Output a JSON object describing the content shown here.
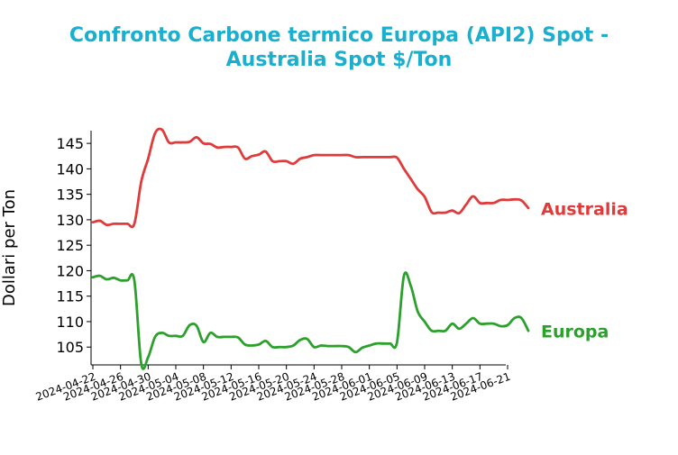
{
  "chart_data": {
    "type": "line",
    "title_line1": "Confronto Carbone termico Europa (API2) Spot -",
    "title_line2": "Australia Spot $/Ton",
    "xlabel": "",
    "ylabel": "Dollari per Ton",
    "ylim": [
      101.5,
      147.5
    ],
    "yticks": [
      105,
      110,
      115,
      120,
      125,
      130,
      135,
      140,
      145
    ],
    "xlim": [
      "2024-04-22",
      "2024-06-21"
    ],
    "xticks": [
      "2024-04-22",
      "2024-04-26",
      "2024-04-30",
      "2024-05-04",
      "2024-05-08",
      "2024-05-12",
      "2024-05-16",
      "2024-05-20",
      "2024-05-24",
      "2024-05-28",
      "2024-06-01",
      "2024-06-05",
      "2024-06-09",
      "2024-06-13",
      "2024-06-17",
      "2024-06-21"
    ],
    "grid": false,
    "legend": "inline labels at right end of lines",
    "series": [
      {
        "name": "Australia",
        "color": "#e03a3a",
        "points": [
          [
            "2024-04-22",
            129.5
          ],
          [
            "2024-04-23",
            129.8
          ],
          [
            "2024-04-24",
            129.0
          ],
          [
            "2024-04-25",
            129.2
          ],
          [
            "2024-04-26",
            129.2
          ],
          [
            "2024-04-27",
            129.2
          ],
          [
            "2024-04-28",
            129.2
          ],
          [
            "2024-04-29",
            137.5
          ],
          [
            "2024-04-30",
            142.0
          ],
          [
            "2024-05-01",
            147.0
          ],
          [
            "2024-05-02",
            147.7
          ],
          [
            "2024-05-03",
            145.2
          ],
          [
            "2024-05-04",
            145.2
          ],
          [
            "2024-05-05",
            145.2
          ],
          [
            "2024-05-06",
            145.3
          ],
          [
            "2024-05-07",
            146.2
          ],
          [
            "2024-05-08",
            145.0
          ],
          [
            "2024-05-09",
            144.9
          ],
          [
            "2024-05-10",
            144.2
          ],
          [
            "2024-05-11",
            144.3
          ],
          [
            "2024-05-12",
            144.3
          ],
          [
            "2024-05-13",
            144.2
          ],
          [
            "2024-05-14",
            142.0
          ],
          [
            "2024-05-15",
            142.5
          ],
          [
            "2024-05-16",
            142.8
          ],
          [
            "2024-05-17",
            143.4
          ],
          [
            "2024-05-18",
            141.5
          ],
          [
            "2024-05-19",
            141.5
          ],
          [
            "2024-05-20",
            141.5
          ],
          [
            "2024-05-21",
            141.0
          ],
          [
            "2024-05-22",
            142.0
          ],
          [
            "2024-05-23",
            142.3
          ],
          [
            "2024-05-24",
            142.7
          ],
          [
            "2024-05-25",
            142.7
          ],
          [
            "2024-05-26",
            142.7
          ],
          [
            "2024-05-27",
            142.7
          ],
          [
            "2024-05-28",
            142.7
          ],
          [
            "2024-05-29",
            142.7
          ],
          [
            "2024-05-30",
            142.3
          ],
          [
            "2024-05-31",
            142.3
          ],
          [
            "2024-06-01",
            142.3
          ],
          [
            "2024-06-02",
            142.3
          ],
          [
            "2024-06-03",
            142.3
          ],
          [
            "2024-06-04",
            142.3
          ],
          [
            "2024-06-05",
            142.2
          ],
          [
            "2024-06-06",
            140.0
          ],
          [
            "2024-06-07",
            138.0
          ],
          [
            "2024-06-08",
            136.0
          ],
          [
            "2024-06-09",
            134.5
          ],
          [
            "2024-06-10",
            131.5
          ],
          [
            "2024-06-11",
            131.4
          ],
          [
            "2024-06-12",
            131.4
          ],
          [
            "2024-06-13",
            131.8
          ],
          [
            "2024-06-14",
            131.3
          ],
          [
            "2024-06-15",
            133.0
          ],
          [
            "2024-06-16",
            134.6
          ],
          [
            "2024-06-17",
            133.3
          ],
          [
            "2024-06-18",
            133.3
          ],
          [
            "2024-06-19",
            133.3
          ],
          [
            "2024-06-20",
            133.9
          ],
          [
            "2024-06-21",
            133.9
          ],
          [
            "2024-06-22",
            134.0
          ],
          [
            "2024-06-23",
            133.8
          ],
          [
            "2024-06-24",
            132.3
          ]
        ]
      },
      {
        "name": "Europa",
        "color": "#2ca02c",
        "points": [
          [
            "2024-04-22",
            118.7
          ],
          [
            "2024-04-23",
            119.0
          ],
          [
            "2024-04-24",
            118.3
          ],
          [
            "2024-04-25",
            118.6
          ],
          [
            "2024-04-26",
            118.1
          ],
          [
            "2024-04-27",
            118.1
          ],
          [
            "2024-04-28",
            118.1
          ],
          [
            "2024-04-29",
            101.7
          ],
          [
            "2024-04-30",
            103.0
          ],
          [
            "2024-05-01",
            107.0
          ],
          [
            "2024-05-02",
            107.8
          ],
          [
            "2024-05-03",
            107.2
          ],
          [
            "2024-05-04",
            107.2
          ],
          [
            "2024-05-05",
            107.2
          ],
          [
            "2024-05-06",
            109.3
          ],
          [
            "2024-05-07",
            109.2
          ],
          [
            "2024-05-08",
            106.0
          ],
          [
            "2024-05-09",
            107.8
          ],
          [
            "2024-05-10",
            107.0
          ],
          [
            "2024-05-11",
            107.0
          ],
          [
            "2024-05-12",
            107.0
          ],
          [
            "2024-05-13",
            106.9
          ],
          [
            "2024-05-14",
            105.5
          ],
          [
            "2024-05-15",
            105.3
          ],
          [
            "2024-05-16",
            105.5
          ],
          [
            "2024-05-17",
            106.2
          ],
          [
            "2024-05-18",
            105.0
          ],
          [
            "2024-05-19",
            105.0
          ],
          [
            "2024-05-20",
            105.0
          ],
          [
            "2024-05-21",
            105.3
          ],
          [
            "2024-05-22",
            106.4
          ],
          [
            "2024-05-23",
            106.6
          ],
          [
            "2024-05-24",
            105.0
          ],
          [
            "2024-05-25",
            105.3
          ],
          [
            "2024-05-26",
            105.2
          ],
          [
            "2024-05-27",
            105.2
          ],
          [
            "2024-05-28",
            105.2
          ],
          [
            "2024-05-29",
            105.0
          ],
          [
            "2024-05-30",
            104.0
          ],
          [
            "2024-05-31",
            104.9
          ],
          [
            "2024-06-01",
            105.3
          ],
          [
            "2024-06-02",
            105.7
          ],
          [
            "2024-06-03",
            105.7
          ],
          [
            "2024-06-04",
            105.7
          ],
          [
            "2024-06-05",
            105.9
          ],
          [
            "2024-06-06",
            119.0
          ],
          [
            "2024-06-07",
            117.0
          ],
          [
            "2024-06-08",
            112.0
          ],
          [
            "2024-06-09",
            110.0
          ],
          [
            "2024-06-10",
            108.2
          ],
          [
            "2024-06-11",
            108.2
          ],
          [
            "2024-06-12",
            108.2
          ],
          [
            "2024-06-13",
            109.6
          ],
          [
            "2024-06-14",
            108.6
          ],
          [
            "2024-06-15",
            109.6
          ],
          [
            "2024-06-16",
            110.7
          ],
          [
            "2024-06-17",
            109.6
          ],
          [
            "2024-06-18",
            109.6
          ],
          [
            "2024-06-19",
            109.6
          ],
          [
            "2024-06-20",
            109.1
          ],
          [
            "2024-06-21",
            109.3
          ],
          [
            "2024-06-22",
            110.7
          ],
          [
            "2024-06-23",
            110.7
          ],
          [
            "2024-06-24",
            108.2
          ]
        ]
      }
    ]
  }
}
